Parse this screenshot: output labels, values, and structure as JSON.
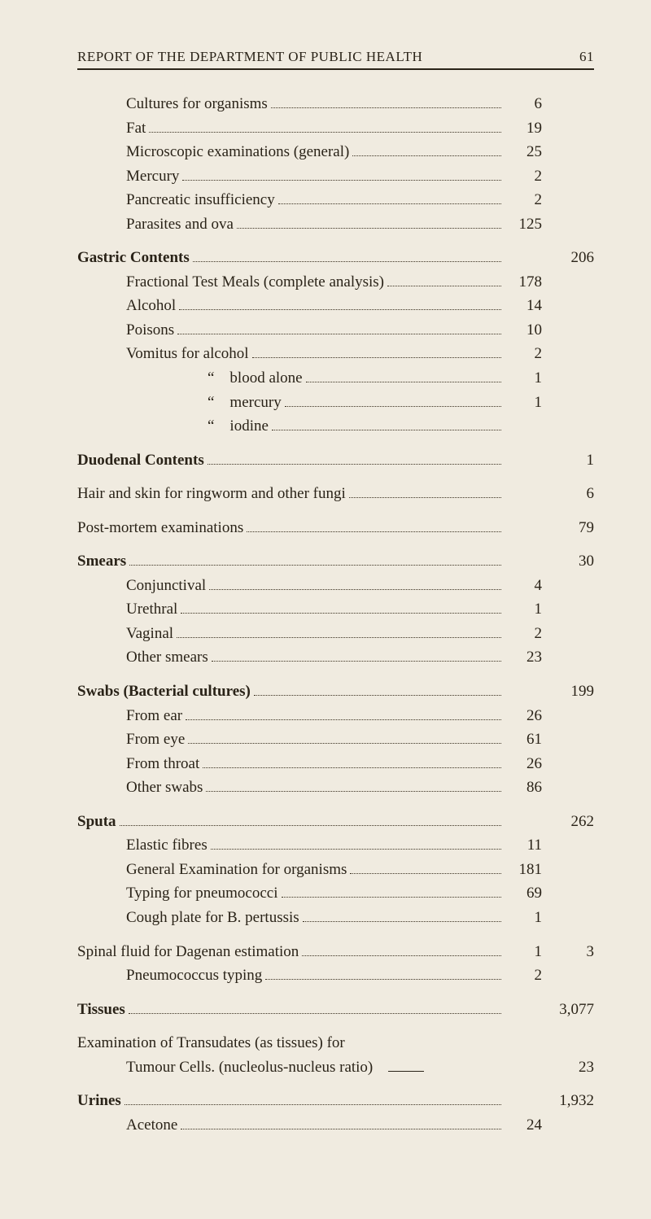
{
  "header": {
    "title": "REPORT OF THE DEPARTMENT OF PUBLIC HEALTH",
    "page_no": "61"
  },
  "lines": [
    {
      "type": "item",
      "indent": 1,
      "label": "Cultures for organisms",
      "inner": "6"
    },
    {
      "type": "item",
      "indent": 1,
      "label": "Fat",
      "inner": "19"
    },
    {
      "type": "item",
      "indent": 1,
      "label": "Microscopic examinations (general)",
      "inner": "25"
    },
    {
      "type": "item",
      "indent": 1,
      "label": "Mercury",
      "inner": "2"
    },
    {
      "type": "item",
      "indent": 1,
      "label": "Pancreatic insufficiency",
      "inner": "2"
    },
    {
      "type": "item",
      "indent": 1,
      "label": "Parasites and ova",
      "inner": "125"
    },
    {
      "type": "gap"
    },
    {
      "type": "section",
      "label": "Gastric Contents",
      "outer": "206"
    },
    {
      "type": "item",
      "indent": 1,
      "label": "Fractional Test Meals (complete analysis)",
      "inner": "178"
    },
    {
      "type": "item",
      "indent": 1,
      "label": "Alcohol",
      "inner": "14"
    },
    {
      "type": "item",
      "indent": 1,
      "label": "Poisons",
      "inner": "10"
    },
    {
      "type": "item",
      "indent": 1,
      "label": "Vomitus for alcohol",
      "inner": "2"
    },
    {
      "type": "item",
      "indent": "q",
      "label": "“ blood alone",
      "inner": "1"
    },
    {
      "type": "item",
      "indent": "q",
      "label": "“ mercury",
      "inner": "1"
    },
    {
      "type": "item",
      "indent": "q",
      "label": "“ iodine",
      "inner": ""
    },
    {
      "type": "gap"
    },
    {
      "type": "section",
      "label": "Duodenal Contents",
      "outer": "1"
    },
    {
      "type": "gap"
    },
    {
      "type": "plain",
      "label": "Hair and skin for ringworm and other fungi",
      "outer": "6"
    },
    {
      "type": "gap"
    },
    {
      "type": "plain",
      "label": "Post-mortem examinations",
      "outer": "79"
    },
    {
      "type": "gap"
    },
    {
      "type": "section",
      "label": "Smears",
      "outer": "30"
    },
    {
      "type": "item",
      "indent": 1,
      "label": "Conjunctival",
      "inner": "4"
    },
    {
      "type": "item",
      "indent": 1,
      "label": "Urethral",
      "inner": "1"
    },
    {
      "type": "item",
      "indent": 1,
      "label": "Vaginal",
      "inner": "2"
    },
    {
      "type": "item",
      "indent": 1,
      "label": "Other smears",
      "inner": "23"
    },
    {
      "type": "gap"
    },
    {
      "type": "section",
      "label": "Swabs (Bacterial cultures)",
      "bold_prefix": "Swabs",
      "outer": "199"
    },
    {
      "type": "item",
      "indent": 1,
      "label": "From ear",
      "inner": "26"
    },
    {
      "type": "item",
      "indent": 1,
      "label": "From eye",
      "inner": "61"
    },
    {
      "type": "item",
      "indent": 1,
      "label": "From throat",
      "inner": "26"
    },
    {
      "type": "item",
      "indent": 1,
      "label": "Other swabs",
      "inner": "86"
    },
    {
      "type": "gap"
    },
    {
      "type": "section",
      "label": "Sputa",
      "outer": "262"
    },
    {
      "type": "item",
      "indent": 1,
      "label": "Elastic fibres",
      "inner": "11"
    },
    {
      "type": "item",
      "indent": 1,
      "label": "General Examination for organisms",
      "inner": "181"
    },
    {
      "type": "item",
      "indent": 1,
      "label": "Typing for pneumococci",
      "inner": "69"
    },
    {
      "type": "item",
      "indent": 1,
      "label": "Cough plate for B. pertussis",
      "inner": "1"
    },
    {
      "type": "gap"
    },
    {
      "type": "plain",
      "label": "Spinal fluid for Dagenan estimation",
      "inner": "1",
      "outer": "3"
    },
    {
      "type": "item",
      "indent": 1,
      "label": "Pneumococcus typing",
      "inner": "2"
    },
    {
      "type": "gap"
    },
    {
      "type": "section",
      "label": "Tissues",
      "outer": "3,077"
    },
    {
      "type": "gap"
    },
    {
      "type": "twoline",
      "line1": "Examination of Transudates (as tissues) for",
      "line2": "Tumour Cells. (nucleolus-nucleus ratio)",
      "dash": true,
      "outer": "23"
    },
    {
      "type": "gap"
    },
    {
      "type": "section",
      "label": "Urines",
      "outer": "1,932"
    },
    {
      "type": "item",
      "indent": 1,
      "label": "Acetone",
      "inner": "24"
    }
  ]
}
